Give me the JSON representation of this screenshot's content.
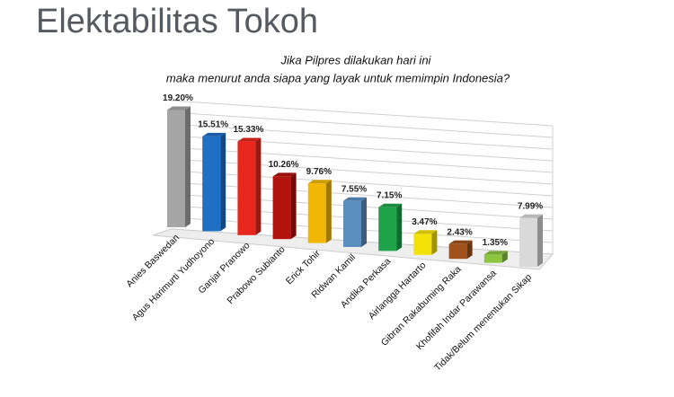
{
  "chart_data": {
    "type": "bar3d",
    "title": "Elektabilitas Tokoh",
    "subtitle": [
      "Jika Pilpres dilakukan hari ini",
      "maka menurut anda siapa yang layak untuk memimpin Indonesia?"
    ],
    "categories": [
      "Anies Baswedan",
      "Agus Harimurti Yudhoyono",
      "Ganjar Pranowo",
      "Prabowo Subianto",
      "Erick Tohir",
      "Ridwan Kamil",
      "Andika Perkasa",
      "Airlangga Hartarto",
      "Gibran Rakabuming Raka",
      "Khofifah Indar Parawansa",
      "Tidak/Belum menentukan Sikap"
    ],
    "values": [
      19.2,
      15.51,
      15.33,
      10.26,
      9.76,
      7.55,
      7.15,
      3.47,
      2.43,
      1.35,
      7.99
    ],
    "value_labels": [
      "19.20%",
      "15.51%",
      "15.33%",
      "10.26%",
      "9.76%",
      "7.55%",
      "7.15%",
      "3.47%",
      "2.43%",
      "1.35%",
      "7.99%"
    ],
    "colors": [
      "#a6a6a6",
      "#1f6fc5",
      "#e8281e",
      "#b3140f",
      "#f2b705",
      "#5b8fc2",
      "#1fa34a",
      "#f5e10a",
      "#a0521c",
      "#8cc63f",
      "#d9d9d9"
    ],
    "ylim": [
      0,
      20
    ]
  }
}
